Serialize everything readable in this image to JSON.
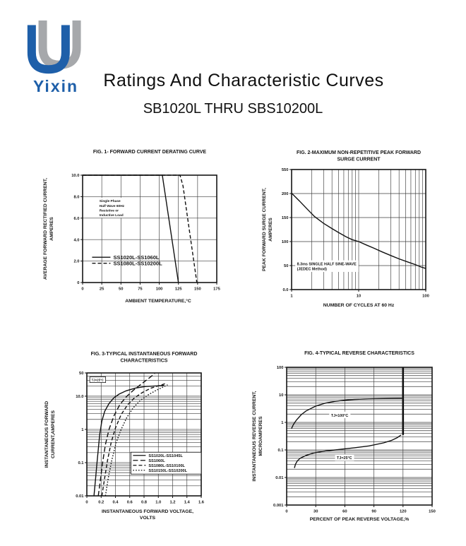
{
  "logo": {
    "brand": "Yixin",
    "colors": {
      "blue": "#1e5fa9",
      "gray": "#a6a8ab"
    }
  },
  "header": {
    "title": "Ratings And  Characteristic Curves",
    "subtitle": "SB1020L THRU SBS10200L"
  },
  "chart_data": [
    {
      "id": "fig1",
      "type": "line",
      "title_lines": [
        "FIG. 1- FORWARD CURRENT DERATING CURVE"
      ],
      "xlabel_lines": [
        "AMBIENT TEMPERATURE,°C"
      ],
      "ylabel_lines": [
        "AVERAGE FORWARD RECTIFIED CURRENT,",
        "AMPERES"
      ],
      "x_axis": {
        "scale": "linear",
        "min": 0,
        "max": 175,
        "ticks": [
          0,
          25,
          50,
          75,
          100,
          125,
          150,
          175
        ],
        "tick_labels": [
          "0",
          "25",
          "50",
          "75",
          "100",
          "125",
          "150",
          "175"
        ]
      },
      "y_axis": {
        "scale": "linear",
        "min": 0,
        "max": 10,
        "ticks": [
          0,
          2,
          4,
          6,
          8,
          10
        ],
        "tick_labels": [
          "0",
          "2.0",
          "4.0",
          "6.0",
          "8.0",
          "10.0"
        ]
      },
      "series": [
        {
          "name": "SS1020L-SS1060L",
          "dash": "solid",
          "points": [
            [
              0,
              10
            ],
            [
              104,
              10
            ],
            [
              125,
              0
            ]
          ]
        },
        {
          "name": "SS1080L-SS10200L",
          "dash": "dash",
          "points": [
            [
              0,
              10
            ],
            [
              127,
              10
            ],
            [
              131,
              9
            ],
            [
              149,
              0
            ]
          ]
        }
      ],
      "legend": {
        "fx": 0.055,
        "fy": 0.73,
        "boxed": false
      },
      "annotations": [
        {
          "lines": [
            "Single Phase",
            "Half Wave 60Hz",
            "Resistive or",
            "Inductive Load"
          ],
          "fx": 0.12,
          "fy": 0.22,
          "font": 4.8,
          "boxed": false
        }
      ]
    },
    {
      "id": "fig2",
      "type": "line",
      "title_lines": [
        "FIG. 2-MAXIMUM NON-REPETITIVE PEAK FORWARD",
        "SURGE CURRENT"
      ],
      "xlabel_lines": [
        "NUMBER OF CYCLES AT 60 Hz"
      ],
      "ylabel_lines": [
        "PEAK  FORWARD SURGE CURRENT,",
        "AMPERES"
      ],
      "x_axis": {
        "scale": "log",
        "min": 1,
        "max": 100,
        "ticks": [
          1,
          10,
          100
        ],
        "tick_labels": [
          "1",
          "10",
          "100"
        ]
      },
      "y_axis": {
        "scale": "segmented",
        "min": 0,
        "max": 550,
        "ticks": [
          0,
          50,
          100,
          150,
          200,
          550
        ],
        "tick_labels": [
          "0.0",
          "50",
          "100",
          "150",
          "200",
          "550"
        ]
      },
      "series": [
        {
          "name": "",
          "dash": "solid",
          "show_in_legend": false,
          "points": [
            [
              1,
              205
            ],
            [
              1.3,
              185
            ],
            [
              1.7,
              168
            ],
            [
              2.2,
              152
            ],
            [
              3,
              138
            ],
            [
              4,
              127
            ],
            [
              5,
              119
            ],
            [
              6.5,
              110
            ],
            [
              8,
              104
            ],
            [
              10,
              100
            ],
            [
              13,
              93
            ],
            [
              17,
              86
            ],
            [
              22,
              79
            ],
            [
              30,
              71
            ],
            [
              40,
              64
            ],
            [
              55,
              57
            ],
            [
              70,
              52
            ],
            [
              85,
              47
            ],
            [
              100,
              44
            ]
          ]
        }
      ],
      "legend": null,
      "annotations": [
        {
          "lines": [
            "8.3ms SINGLE HALF SINE-WAVE",
            "(JEDEC Method)"
          ],
          "fx": 0.035,
          "fy": 0.765,
          "font": 5.4,
          "boxed": false
        }
      ]
    },
    {
      "id": "fig3",
      "type": "line",
      "title_lines": [
        "FIG. 3-TYPICAL INSTANTANEOUS FORWARD",
        "CHARACTERISTICS"
      ],
      "xlabel_lines": [
        "INSTANTANEOUS FORWARD VOLTAGE,",
        "VOLTS"
      ],
      "ylabel_lines": [
        "INSTANTANEOUS FORWARD",
        "CURRENT,AMPERES"
      ],
      "x_axis": {
        "scale": "linear",
        "min": 0,
        "max": 1.6,
        "ticks": [
          0,
          0.2,
          0.4,
          0.6,
          0.8,
          1.0,
          1.2,
          1.4,
          1.6
        ],
        "tick_labels": [
          "0",
          "0.2",
          "0.4",
          "0.6",
          "0.8",
          "1.0",
          "1.2",
          "1.4",
          "1.6"
        ]
      },
      "y_axis": {
        "scale": "log",
        "min": 0.01,
        "max": 50,
        "ticks": [
          0.01,
          0.1,
          1,
          10,
          50
        ],
        "tick_labels": [
          "0.01",
          "0.1",
          "1",
          "10.0",
          "50"
        ]
      },
      "series": [
        {
          "name": "SS1020L-SS1045L",
          "dash": "solid",
          "points": [
            [
              0.1,
              0.01
            ],
            [
              0.12,
              0.03
            ],
            [
              0.14,
              0.09
            ],
            [
              0.16,
              0.25
            ],
            [
              0.18,
              0.7
            ],
            [
              0.21,
              1.8
            ],
            [
              0.25,
              3.5
            ],
            [
              0.31,
              6
            ],
            [
              0.38,
              9
            ],
            [
              0.45,
              11.5
            ],
            [
              0.55,
              14.5
            ],
            [
              0.68,
              17.5
            ],
            [
              0.82,
              19.5
            ],
            [
              1.0,
              20.5
            ],
            [
              1.08,
              21
            ]
          ]
        },
        {
          "name": "SS1060L",
          "dash": "longdash",
          "points": [
            [
              0.16,
              0.01
            ],
            [
              0.19,
              0.03
            ],
            [
              0.22,
              0.1
            ],
            [
              0.26,
              0.35
            ],
            [
              0.31,
              1
            ],
            [
              0.38,
              2.6
            ],
            [
              0.46,
              5.5
            ],
            [
              0.55,
              9.5
            ],
            [
              0.65,
              15
            ],
            [
              0.76,
              23
            ],
            [
              0.87,
              35
            ],
            [
              0.95,
              48
            ]
          ]
        },
        {
          "name": "SS1080L-SS10100L",
          "dash": "dash",
          "points": [
            [
              0.21,
              0.01
            ],
            [
              0.25,
              0.035
            ],
            [
              0.29,
              0.12
            ],
            [
              0.34,
              0.4
            ],
            [
              0.4,
              1.1
            ],
            [
              0.48,
              2.8
            ],
            [
              0.57,
              5.5
            ],
            [
              0.67,
              9
            ],
            [
              0.78,
              13
            ],
            [
              0.9,
              17.5
            ],
            [
              1.02,
              21
            ],
            [
              1.1,
              24
            ]
          ]
        },
        {
          "name": "SS10150L-SS10200L",
          "dash": "dot",
          "points": [
            [
              0.26,
              0.01
            ],
            [
              0.3,
              0.035
            ],
            [
              0.35,
              0.12
            ],
            [
              0.41,
              0.4
            ],
            [
              0.48,
              1.0
            ],
            [
              0.56,
              2.3
            ],
            [
              0.65,
              4.5
            ],
            [
              0.75,
              7.5
            ],
            [
              0.86,
              11
            ],
            [
              0.97,
              15
            ],
            [
              1.07,
              19
            ],
            [
              1.13,
              22
            ]
          ]
        }
      ],
      "legend": {
        "fx": 0.385,
        "fy": 0.645,
        "boxed": true
      },
      "annotations": [
        {
          "lines": [
            "TJ=25°C"
          ],
          "fx": 0.035,
          "fy": 0.04,
          "font": 4.3,
          "boxed": true
        }
      ]
    },
    {
      "id": "fig4",
      "type": "line",
      "title_lines": [
        "FIG. 4-TYPICAL REVERSE CHARACTERISTICS"
      ],
      "xlabel_lines": [
        "PERCENT OF PEAK REVERSE VOLTAGE,%"
      ],
      "ylabel_lines": [
        "INSTANTANEOUS REVERSE CURRENT,",
        "MICROAMPERES"
      ],
      "x_axis": {
        "scale": "linear",
        "min": 0,
        "max": 150,
        "ticks": [
          0,
          30,
          60,
          90,
          120,
          150
        ],
        "tick_labels": [
          "0",
          "30",
          "60",
          "90",
          "120",
          "150"
        ]
      },
      "y_axis": {
        "scale": "log",
        "min": 0.001,
        "max": 100,
        "ticks": [
          0.001,
          0.01,
          0.1,
          1,
          10,
          100
        ],
        "tick_labels": [
          "0.001",
          "0.01",
          "0.1",
          "1",
          "10",
          "100"
        ]
      },
      "series": [
        {
          "name": "TJ=100°C",
          "dash": "solid",
          "show_in_legend": false,
          "points": [
            [
              5,
              0.6
            ],
            [
              7,
              0.85
            ],
            [
              10,
              1.2
            ],
            [
              15,
              1.9
            ],
            [
              20,
              2.6
            ],
            [
              30,
              3.9
            ],
            [
              40,
              5.0
            ],
            [
              50,
              5.8
            ],
            [
              60,
              6.4
            ],
            [
              70,
              6.8
            ],
            [
              80,
              7.0
            ],
            [
              90,
              7.2
            ],
            [
              100,
              7.3
            ],
            [
              110,
              7.4
            ],
            [
              119,
              7.5
            ]
          ]
        },
        {
          "name": "TJ=25°C",
          "dash": "solid",
          "show_in_legend": false,
          "points": [
            [
              8,
              0.022
            ],
            [
              9,
              0.03
            ],
            [
              11,
              0.04
            ],
            [
              14,
              0.05
            ],
            [
              20,
              0.063
            ],
            [
              28,
              0.078
            ],
            [
              40,
              0.092
            ],
            [
              55,
              0.105
            ],
            [
              70,
              0.12
            ],
            [
              85,
              0.14
            ],
            [
              100,
              0.18
            ],
            [
              108,
              0.22
            ],
            [
              114,
              0.28
            ],
            [
              118,
              0.35
            ]
          ]
        },
        {
          "name": "",
          "dash": "solid",
          "width": 2.6,
          "show_in_legend": false,
          "points": [
            [
              120,
              0.35
            ],
            [
              120,
              100
            ]
          ]
        }
      ],
      "legend": null,
      "annotations": [
        {
          "lines": [
            "TJ=100°C"
          ],
          "fx": 0.3,
          "fy": 0.33,
          "font": 5.4,
          "boxed": false
        },
        {
          "lines": [
            "TJ=25°C"
          ],
          "fx": 0.34,
          "fy": 0.64,
          "font": 5.4,
          "boxed": false
        }
      ]
    }
  ]
}
